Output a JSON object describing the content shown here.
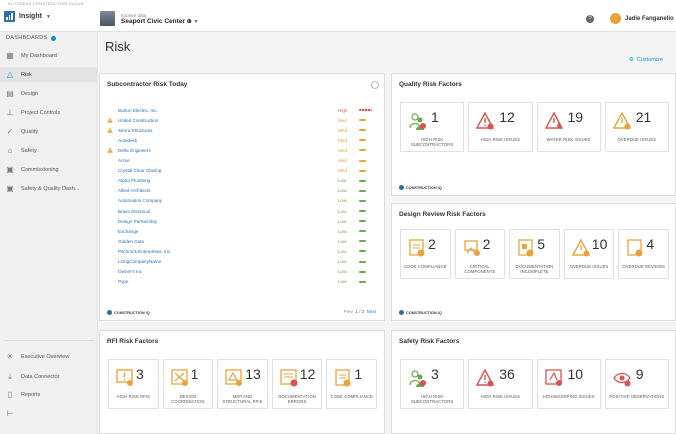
{
  "topstrip": "AUTODESK CONSTRUCTION CLOUD",
  "app": {
    "name": "Insight"
  },
  "project": {
    "label": "Explore data",
    "name": "Seaport Civic Center"
  },
  "user": {
    "name": "Jadie Fanganello"
  },
  "sidebar": {
    "header": "DASHBOARDS",
    "items": [
      {
        "label": "My Dashboard",
        "icon": "grid-icon"
      },
      {
        "label": "Risk",
        "icon": "warning-triangle-icon"
      },
      {
        "label": "Design",
        "icon": "ruler-icon"
      },
      {
        "label": "Project Controls",
        "icon": "org-chart-icon"
      },
      {
        "label": "Quality",
        "icon": "checkmark-icon"
      },
      {
        "label": "Safety",
        "icon": "hard-hat-icon"
      },
      {
        "label": "Commissioning",
        "icon": "boxes-icon"
      },
      {
        "label": "Safety & Quality Dash...",
        "icon": "boxes-icon"
      }
    ],
    "bottom": [
      {
        "label": "Executive Overview",
        "icon": "sparkle-icon"
      },
      {
        "label": "Data Connector",
        "icon": "download-icon"
      },
      {
        "label": "Reports",
        "icon": "document-icon"
      },
      {
        "label": "",
        "icon": "collapse-icon"
      }
    ]
  },
  "page": {
    "title": "Risk",
    "customize": "Customize"
  },
  "subcontractor": {
    "title": "Subcontractor Risk Today",
    "rows": [
      {
        "name": "Burton Electric, Inc.",
        "level": "High",
        "warn": false
      },
      {
        "name": "United Construction",
        "level": "Med",
        "warn": true
      },
      {
        "name": "Sierra Structures",
        "level": "Med",
        "warn": true
      },
      {
        "name": "Autodesk",
        "level": "Med",
        "warn": false
      },
      {
        "name": "Delta Engineers",
        "level": "Med",
        "warn": true
      },
      {
        "name": "Acme",
        "level": "Med",
        "warn": false
      },
      {
        "name": "Crystal Clear Glazing",
        "level": "Med",
        "warn": false
      },
      {
        "name": "Alpha Plumbing",
        "level": "Low",
        "warn": false
      },
      {
        "name": "Allied Architects",
        "level": "Low",
        "warn": false
      },
      {
        "name": "Automation Company",
        "level": "Low",
        "warn": false
      },
      {
        "name": "Bravo Electrical",
        "level": "Low",
        "warn": false
      },
      {
        "name": "Design Partnership",
        "level": "Low",
        "warn": false
      },
      {
        "name": "Exchange",
        "level": "Low",
        "warn": false
      },
      {
        "name": "Golden Gate",
        "level": "Low",
        "warn": false
      },
      {
        "name": "Pitchrock Enterprises, Inc.",
        "level": "Low",
        "warn": false
      },
      {
        "name": "LOngCompanyName",
        "level": "Low",
        "warn": false
      },
      {
        "name": "Owner's Inc",
        "level": "Low",
        "warn": false
      },
      {
        "name": "Pype",
        "level": "Low",
        "warn": false
      }
    ],
    "footer": "CONSTRUCTION IQ",
    "pager": {
      "prev": "Prev",
      "page": "1",
      "of": "2",
      "next": "Next"
    }
  },
  "level_colors": {
    "High": "#d9534f",
    "Med": "#e8a33d",
    "Low": "#6aa84f"
  },
  "quality": {
    "title": "Quality Risk Factors",
    "tiles": [
      {
        "value": "1",
        "label": "HIGH RISK SUBCONTRACTORS",
        "icon": "people-risk-icon"
      },
      {
        "value": "12",
        "label": "HIGH RISK ISSUES",
        "icon": "warning-issue-icon"
      },
      {
        "value": "19",
        "label": "WATER RISK ISSUES",
        "icon": "water-warning-icon"
      },
      {
        "value": "21",
        "label": "OVERDUE ISSUES",
        "icon": "clock-warning-icon"
      }
    ],
    "footer": "CONSTRUCTION IQ"
  },
  "design_review": {
    "title": "Design Review Risk Factors",
    "tiles": [
      {
        "value": "2",
        "label": "CODE COMPLIANCE",
        "icon": "code-doc-icon"
      },
      {
        "value": "2",
        "label": "CRITICAL COMPONENTS",
        "icon": "components-icon"
      },
      {
        "value": "5",
        "label": "DOCUMENTATION INCOMPLETE",
        "icon": "doc-incomplete-icon"
      },
      {
        "value": "10",
        "label": "OVERDUE ISSUES",
        "icon": "clock-warning-icon"
      },
      {
        "value": "4",
        "label": "OVERDUE REVIEWS",
        "icon": "review-clock-icon"
      }
    ],
    "footer": "CONSTRUCTION IQ"
  },
  "rfi": {
    "title": "RFI Risk Factors",
    "tiles": [
      {
        "value": "3",
        "label": "HIGH RISK RFIS",
        "icon": "rfi-warning-icon"
      },
      {
        "value": "1",
        "label": "DESIGN COORDINATION",
        "icon": "coordination-icon"
      },
      {
        "value": "13",
        "label": "MEP AND STRUCTURAL RFIS",
        "icon": "mep-icon"
      },
      {
        "value": "12",
        "label": "DOCUMENTATION ERRORS",
        "icon": "doc-error-icon"
      },
      {
        "value": "1",
        "label": "CODE COMPLIANCE",
        "icon": "code-doc-icon"
      }
    ]
  },
  "safety": {
    "title": "Safety Risk Factors",
    "tiles": [
      {
        "value": "3",
        "label": "HIGH RISK SUBCONTRACTORS",
        "icon": "people-risk-icon"
      },
      {
        "value": "36",
        "label": "HIGH RISK ISSUES",
        "icon": "warning-issue-icon"
      },
      {
        "value": "10",
        "label": "HOUSEKEEPING ISSUES",
        "icon": "housekeeping-icon"
      },
      {
        "value": "9",
        "label": "POSITIVE OBSERVATIONS",
        "icon": "eye-icon"
      }
    ]
  }
}
